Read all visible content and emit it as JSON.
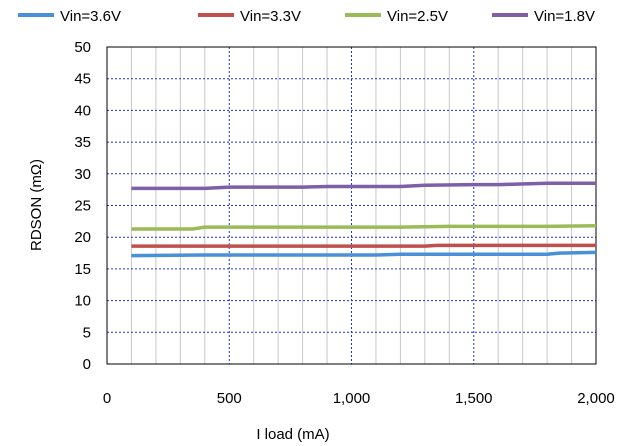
{
  "chart_data": {
    "type": "line",
    "title": "",
    "xlabel": "I load (mA)",
    "ylabel": "RDSON (mΩ)",
    "xlim": [
      0,
      2000
    ],
    "ylim": [
      0,
      50
    ],
    "x_ticks": [
      0,
      500,
      1000,
      1500,
      2000
    ],
    "x_tick_labels": [
      "0",
      "500",
      "1,000",
      "1,500",
      "2,000"
    ],
    "y_ticks": [
      0,
      5,
      10,
      15,
      20,
      25,
      30,
      35,
      40,
      45,
      50
    ],
    "y_tick_labels": [
      "0",
      "5",
      "10",
      "15",
      "20",
      "25",
      "30",
      "35",
      "40",
      "45",
      "50"
    ],
    "grid": true,
    "legend_position": "top",
    "series": [
      {
        "name": "Vin=3.6V",
        "color": "#4a90d9",
        "x": [
          100,
          400,
          700,
          1000,
          1100,
          1200,
          1500,
          1800,
          1850,
          2000
        ],
        "y": [
          17.1,
          17.2,
          17.2,
          17.2,
          17.2,
          17.3,
          17.3,
          17.3,
          17.5,
          17.6
        ]
      },
      {
        "name": "Vin=3.3V",
        "color": "#c0504d",
        "x": [
          100,
          400,
          700,
          1000,
          1300,
          1350,
          1600,
          1800,
          2000
        ],
        "y": [
          18.6,
          18.6,
          18.6,
          18.6,
          18.6,
          18.7,
          18.7,
          18.7,
          18.7
        ]
      },
      {
        "name": "Vin=2.5V",
        "color": "#9bbb59",
        "x": [
          100,
          350,
          400,
          600,
          900,
          1200,
          1400,
          1600,
          1800,
          2000
        ],
        "y": [
          21.3,
          21.3,
          21.6,
          21.6,
          21.6,
          21.6,
          21.7,
          21.7,
          21.7,
          21.8
        ]
      },
      {
        "name": "Vin=1.8V",
        "color": "#7f5fa8",
        "x": [
          100,
          400,
          500,
          800,
          900,
          1200,
          1300,
          1500,
          1600,
          1800,
          2000
        ],
        "y": [
          27.7,
          27.7,
          27.9,
          27.9,
          28.0,
          28.0,
          28.2,
          28.3,
          28.3,
          28.5,
          28.5
        ]
      }
    ]
  }
}
